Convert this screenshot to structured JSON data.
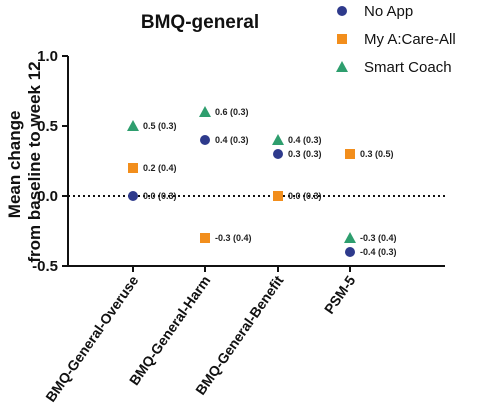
{
  "chart_data": {
    "type": "scatter",
    "title": "BMQ-general",
    "ylabel": "Mean change\nfrom baseline to week 12",
    "ylim": [
      -0.5,
      1.0
    ],
    "yticks": [
      "-0.5",
      "0.0",
      "0.5",
      "1.0"
    ],
    "categories": [
      "BMQ-General-Overuse",
      "BMQ-General-Harm",
      "BMQ-General-Benefit",
      "PSM-5"
    ],
    "legend_position": "top-right",
    "reference_line": 0.0,
    "series": [
      {
        "name": "No App",
        "marker": "circle",
        "color": "#2e3a8c",
        "values": [
          0.0,
          0.4,
          0.3,
          -0.4
        ],
        "labels": [
          "0.0 (0.3)",
          "0.4 (0.3)",
          "0.3 (0.3)",
          "-0.4 (0.3)"
        ]
      },
      {
        "name": "My A:Care-All",
        "marker": "square",
        "color": "#f28e1c",
        "values": [
          0.2,
          -0.3,
          0.0,
          0.3
        ],
        "labels": [
          "0.2 (0.4)",
          "-0.3 (0.4)",
          "0.0 (0.3)",
          "0.3 (0.5)"
        ]
      },
      {
        "name": "Smart Coach",
        "marker": "triangle",
        "color": "#2e9e6e",
        "values": [
          0.5,
          0.6,
          0.4,
          -0.3
        ],
        "labels": [
          "0.5 (0.3)",
          "0.6 (0.3)",
          "0.4 (0.3)",
          "-0.3 (0.4)"
        ]
      }
    ]
  }
}
